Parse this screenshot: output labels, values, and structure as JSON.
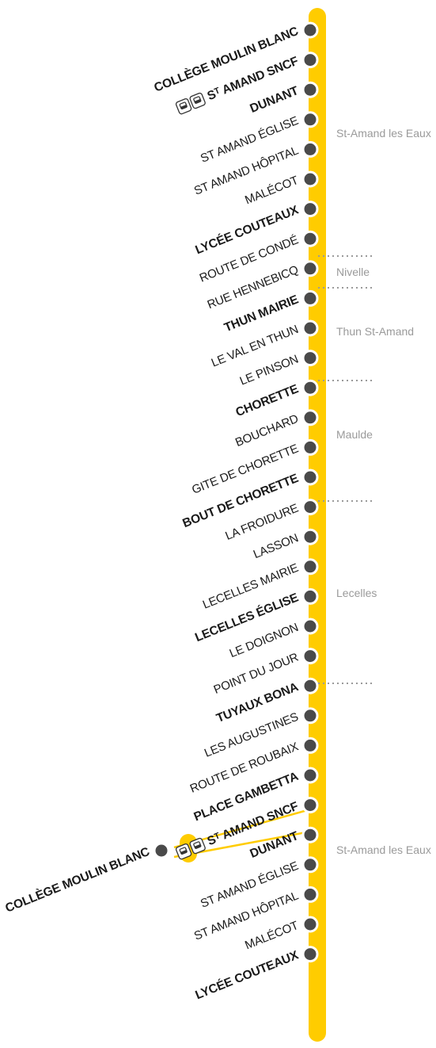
{
  "line": {
    "color": "#FFCC00",
    "stop_color": "#4a4a4a"
  },
  "stops": [
    {
      "label": "COLLÈGE MOULIN BLANC",
      "major": true
    },
    {
      "label": "Sᵀ AMAND SNCF",
      "major": true,
      "icons": [
        "train-icon",
        "bus-icon"
      ]
    },
    {
      "label": "DUNANT",
      "major": true
    },
    {
      "label": "ST AMAND ÉGLISE",
      "major": false
    },
    {
      "label": "ST AMAND HÔPITAL",
      "major": false
    },
    {
      "label": "MALÉCOT",
      "major": false
    },
    {
      "label": "LYCÉE COUTEAUX",
      "major": true
    },
    {
      "label": "ROUTE DE CONDÉ",
      "major": false
    },
    {
      "label": "RUE HENNEBICQ",
      "major": false
    },
    {
      "label": "THUN MAIRIE",
      "major": true
    },
    {
      "label": "LE VAL EN THUN",
      "major": false
    },
    {
      "label": "LE PINSON",
      "major": false
    },
    {
      "label": "CHORETTE",
      "major": true
    },
    {
      "label": "BOUCHARD",
      "major": false
    },
    {
      "label": "GITE DE CHORETTE",
      "major": false
    },
    {
      "label": "BOUT DE CHORETTE",
      "major": true
    },
    {
      "label": "LA FROIDURE",
      "major": false
    },
    {
      "label": "LASSON",
      "major": false
    },
    {
      "label": "LECELLES MAIRIE",
      "major": false
    },
    {
      "label": "LECELLES ÉGLISE",
      "major": true
    },
    {
      "label": "LE DOIGNON",
      "major": false
    },
    {
      "label": "POINT DU JOUR",
      "major": false
    },
    {
      "label": "TUYAUX BONA",
      "major": true
    },
    {
      "label": "LES AUGUSTINES",
      "major": false
    },
    {
      "label": "ROUTE DE ROUBAIX",
      "major": false
    },
    {
      "label": "PLACE GAMBETTA",
      "major": true
    },
    {
      "label": "Sᵀ AMAND SNCF",
      "major": true,
      "icons": [
        "train-icon",
        "bus-icon"
      ]
    },
    {
      "label": "DUNANT",
      "major": true
    },
    {
      "label": "ST AMAND ÉGLISE",
      "major": false
    },
    {
      "label": "ST AMAND HÔPITAL",
      "major": false
    },
    {
      "label": "MALÉCOT",
      "major": false
    },
    {
      "label": "LYCÉE COUTEAUX",
      "major": true
    }
  ],
  "branch_stop": {
    "label": "COLLÈGE MOULIN BLANC",
    "major": true
  },
  "zones": [
    "St-Amand les Eaux",
    "Nivelle",
    "Thun St-Amand",
    "Maulde",
    "Lecelles",
    "St-Amand les Eaux"
  ]
}
